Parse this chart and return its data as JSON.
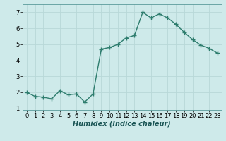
{
  "x": [
    0,
    1,
    2,
    3,
    4,
    5,
    6,
    7,
    8,
    9,
    10,
    11,
    12,
    13,
    14,
    15,
    16,
    17,
    18,
    19,
    20,
    21,
    22,
    23
  ],
  "y": [
    2.0,
    1.75,
    1.7,
    1.6,
    2.1,
    1.85,
    1.9,
    1.4,
    1.9,
    4.7,
    4.8,
    5.0,
    5.4,
    5.55,
    7.0,
    6.65,
    6.9,
    6.65,
    6.25,
    5.75,
    5.3,
    4.95,
    4.75,
    4.45
  ],
  "line_color": "#2e7d6e",
  "marker": "+",
  "marker_size": 4,
  "bg_color": "#ceeaea",
  "grid_color": "#b8d8d8",
  "xlabel": "Humidex (Indice chaleur)",
  "xlim": [
    -0.5,
    23.5
  ],
  "ylim": [
    0.9,
    7.5
  ],
  "yticks": [
    1,
    2,
    3,
    4,
    5,
    6,
    7
  ],
  "xticks": [
    0,
    1,
    2,
    3,
    4,
    5,
    6,
    7,
    8,
    9,
    10,
    11,
    12,
    13,
    14,
    15,
    16,
    17,
    18,
    19,
    20,
    21,
    22,
    23
  ],
  "xlabel_fontsize": 7,
  "tick_fontsize": 6,
  "linewidth": 1.0,
  "markeredgewidth": 1.0
}
